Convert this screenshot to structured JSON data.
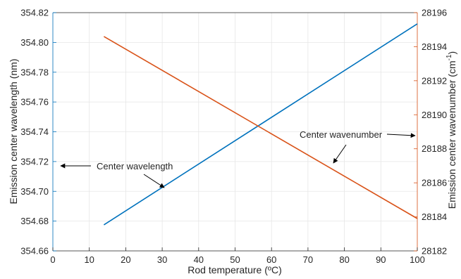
{
  "chart_data": {
    "type": "line",
    "xlabel": "Rod temperature (ºC)",
    "ylabel_left": "Emission center wavelength (nm)",
    "ylabel_right_base": "Emission center wavenumber (cm",
    "ylabel_right_sup": "-1",
    "ylabel_right_close": ")",
    "xlim": [
      0,
      100
    ],
    "ylim_left": [
      354.66,
      354.82
    ],
    "ylim_right": [
      28182,
      28196
    ],
    "x_ticks": [
      0,
      10,
      20,
      30,
      40,
      50,
      60,
      70,
      80,
      90,
      100
    ],
    "y_left_ticks": [
      "354.66",
      "354.68",
      "354.70",
      "354.72",
      "354.74",
      "354.76",
      "354.78",
      "354.80",
      "354.82"
    ],
    "y_right_ticks": [
      "28182",
      "28184",
      "28186",
      "28188",
      "28190",
      "28192",
      "28194",
      "28196"
    ],
    "grid": true,
    "series": [
      {
        "name": "Center wavelength",
        "axis": "left",
        "color": "#0072BD",
        "x": [
          14,
          100
        ],
        "y": [
          354.6775,
          354.8125
        ]
      },
      {
        "name": "Center wavenumber",
        "axis": "right",
        "color": "#D95319",
        "x": [
          14,
          100
        ],
        "y": [
          28194.6,
          28183.9
        ]
      }
    ],
    "annotations": [
      {
        "text": "Center wavelength",
        "points_to": "left-axis"
      },
      {
        "text": "Center wavenumber",
        "points_to": "right-axis"
      }
    ]
  }
}
